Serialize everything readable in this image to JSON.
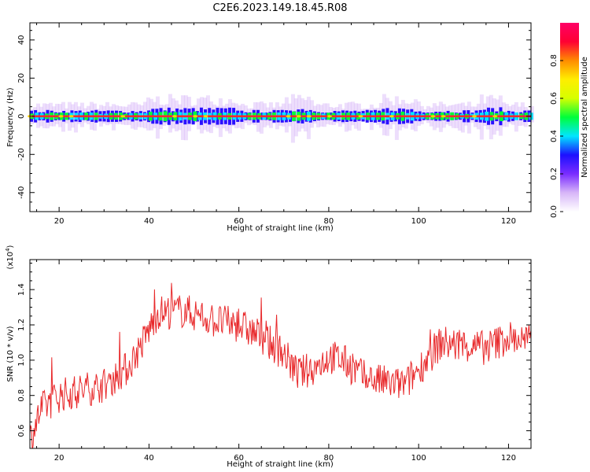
{
  "title": "C2E6.2023.149.18.45.R08",
  "colors": {
    "trace": "#e8282a",
    "axis": "#000000"
  },
  "chart_data": [
    {
      "type": "heatmap",
      "xlabel": "Height of straight line (km)",
      "ylabel": "Frequency (Hz)",
      "xlim": [
        13.5,
        125
      ],
      "ylim": [
        -50,
        49
      ],
      "xticks": [
        20,
        40,
        60,
        80,
        100,
        120
      ],
      "xtick_labels": [
        "20",
        "40",
        "60",
        "80",
        "100",
        "120"
      ],
      "yticks": [
        -40,
        -20,
        0,
        20,
        40
      ],
      "ytick_labels": [
        "-40",
        "-20",
        "0",
        "20",
        "40"
      ],
      "band_center_hz": 0,
      "band_core_halfwidth_hz": 0.9,
      "band_spread_halfwidth_hz": 6,
      "wide_segments_km": [
        [
          39,
          60
        ],
        [
          70,
          76
        ],
        [
          91,
          99
        ],
        [
          113,
          118
        ]
      ],
      "colorbar": {
        "label": "Normalized spectral amplitude",
        "range": [
          0,
          1
        ],
        "ticks": [
          0.0,
          0.2,
          0.4,
          0.6,
          0.8
        ],
        "tick_labels": [
          "0.0",
          "0.2",
          "0.4",
          "0.6",
          "0.8"
        ],
        "colormap": [
          "#ffffff",
          "#d7b6f8",
          "#7a2cff",
          "#1c10ff",
          "#00e6ff",
          "#00ff3a",
          "#d6ff00",
          "#ffee00",
          "#ff8c00",
          "#ff0033",
          "#ff0066"
        ]
      }
    },
    {
      "type": "line",
      "xlabel": "Height of straight line (km)",
      "ylabel": "SNR (10 * v/v)",
      "scale_label": "(x10^4)",
      "scale_base": "(x10",
      "scale_exp": "4",
      "scale_close": ")",
      "xlim": [
        13.5,
        125
      ],
      "ylim": [
        0.5,
        1.57
      ],
      "xticks": [
        20,
        40,
        60,
        80,
        100,
        120
      ],
      "xtick_labels": [
        "20",
        "40",
        "60",
        "80",
        "100",
        "120"
      ],
      "yticks": [
        0.6,
        0.8,
        1.0,
        1.2,
        1.4
      ],
      "ytick_labels": [
        "0.6",
        "0.8",
        "1.0",
        "1.2",
        "1.4"
      ],
      "series": [
        {
          "trend_x": [
            13.5,
            16,
            20,
            25,
            30,
            35,
            38,
            42,
            48,
            55,
            60,
            65,
            70,
            73,
            77,
            80,
            83,
            88,
            93,
            97,
            101,
            105,
            110,
            115,
            120,
            125
          ],
          "trend_y": [
            0.55,
            0.72,
            0.8,
            0.83,
            0.86,
            0.95,
            1.07,
            1.27,
            1.28,
            1.22,
            1.2,
            1.13,
            1.04,
            0.92,
            0.96,
            1.02,
            1.0,
            0.9,
            0.87,
            0.86,
            0.98,
            1.1,
            1.08,
            1.07,
            1.13,
            1.1
          ],
          "noise_amplitude": 0.1
        }
      ]
    }
  ]
}
